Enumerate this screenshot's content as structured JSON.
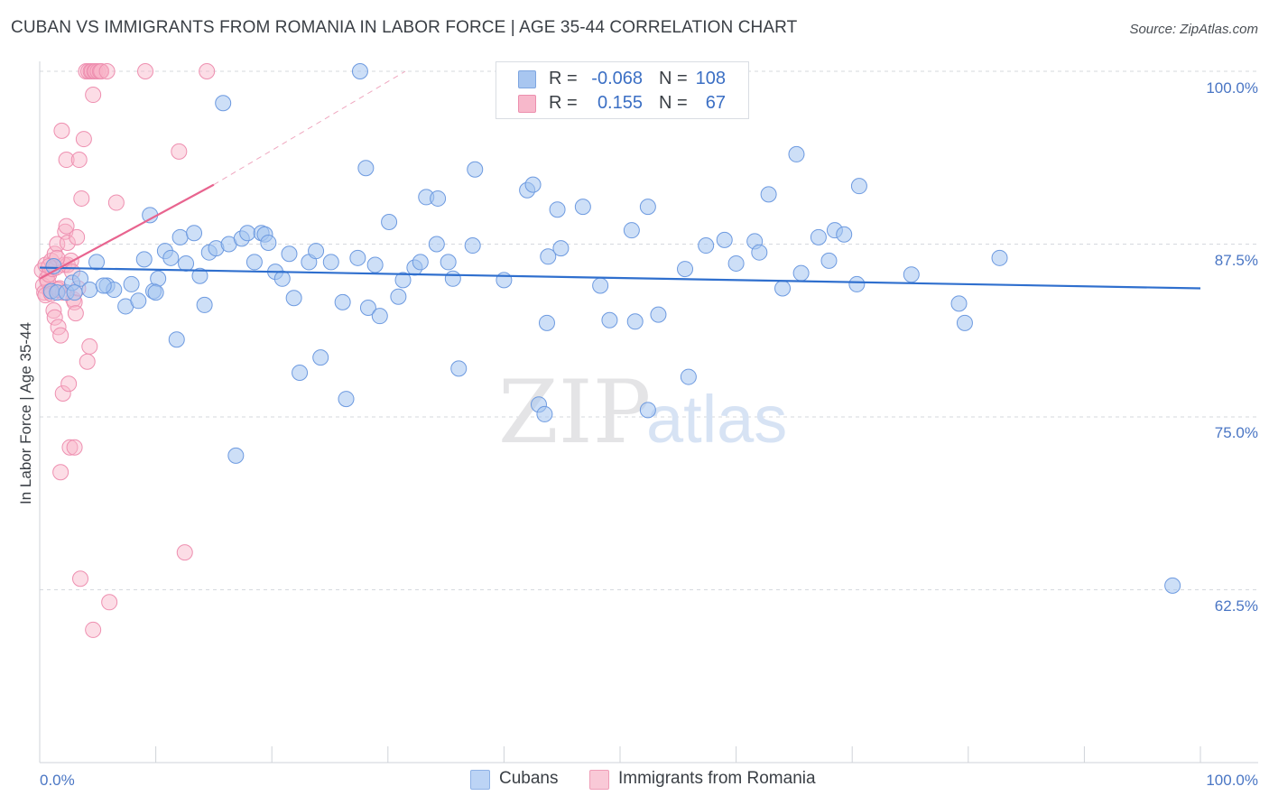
{
  "header": {
    "title": "CUBAN VS IMMIGRANTS FROM ROMANIA IN LABOR FORCE | AGE 35-44 CORRELATION CHART",
    "source": "Source: ZipAtlas.com"
  },
  "watermark": {
    "zip": "ZIP",
    "atlas": "atlas"
  },
  "legend_stats": [
    {
      "r_label": "R =",
      "r_value": "-0.068",
      "n_label": "N =",
      "n_value": "108",
      "color": "#a8c6f0",
      "border": "#7ea6e0"
    },
    {
      "r_label": "R =",
      "r_value": "0.155",
      "n_label": "N =",
      "n_value": "67",
      "color": "#f7b8cb",
      "border": "#ec8fae"
    }
  ],
  "bottom_legend": [
    {
      "label": "Cubans",
      "color": "#bcd4f5",
      "border": "#8eb2e6"
    },
    {
      "label": "Immigrants from Romania",
      "color": "#f9c9d7",
      "border": "#ef9db7"
    }
  ],
  "colors": {
    "cubans_fill": "rgba(164,196,240,0.55)",
    "cubans_stroke": "#6d9ae0",
    "cubans_line": "#2f6fce",
    "romania_fill": "rgba(248,180,200,0.45)",
    "romania_stroke": "#ee8fb0",
    "romania_line": "#e8648f",
    "grid": "#d5d9de",
    "axis_label": "#4a76c4"
  },
  "chart_data": {
    "type": "scatter",
    "title": "CUBAN VS IMMIGRANTS FROM ROMANIA IN LABOR FORCE | AGE 35-44 CORRELATION CHART",
    "xlabel": "",
    "ylabel": "In Labor Force | Age 35-44",
    "xlim": [
      0,
      100
    ],
    "ylim": [
      50,
      100
    ],
    "x_tick_labels": [
      "0.0%",
      "100.0%"
    ],
    "y_ticks": [
      100,
      87.5,
      75,
      62.5
    ],
    "y_tick_labels": [
      "100.0%",
      "87.5%",
      "75.0%",
      "62.5%"
    ],
    "grid": true,
    "series": [
      {
        "name": "Cubans",
        "r": -0.068,
        "n": 108,
        "trend": {
          "x": [
            0,
            100
          ],
          "y": [
            85.8,
            84.3
          ]
        },
        "points": [
          [
            1.0,
            84.1
          ],
          [
            1.5,
            84.0
          ],
          [
            2.3,
            84.0
          ],
          [
            2.8,
            84.7
          ],
          [
            3.5,
            85.0
          ],
          [
            4.3,
            84.2
          ],
          [
            4.9,
            86.2
          ],
          [
            5.8,
            84.5
          ],
          [
            6.4,
            84.2
          ],
          [
            7.4,
            83.0
          ],
          [
            7.9,
            84.6
          ],
          [
            8.5,
            83.4
          ],
          [
            9.0,
            86.4
          ],
          [
            9.5,
            89.6
          ],
          [
            9.8,
            84.1
          ],
          [
            10.2,
            85.0
          ],
          [
            10.8,
            87.0
          ],
          [
            11.3,
            86.5
          ],
          [
            11.8,
            80.6
          ],
          [
            12.1,
            88.0
          ],
          [
            12.6,
            86.1
          ],
          [
            13.3,
            88.3
          ],
          [
            13.8,
            85.2
          ],
          [
            14.2,
            83.1
          ],
          [
            14.6,
            86.9
          ],
          [
            15.2,
            87.2
          ],
          [
            15.8,
            97.7
          ],
          [
            16.3,
            87.5
          ],
          [
            16.9,
            72.2
          ],
          [
            17.4,
            87.9
          ],
          [
            17.9,
            88.3
          ],
          [
            18.5,
            86.2
          ],
          [
            19.1,
            88.3
          ],
          [
            19.4,
            88.2
          ],
          [
            19.7,
            87.6
          ],
          [
            20.3,
            85.5
          ],
          [
            20.9,
            85.0
          ],
          [
            21.5,
            86.8
          ],
          [
            21.9,
            83.6
          ],
          [
            22.4,
            78.2
          ],
          [
            23.2,
            86.2
          ],
          [
            23.8,
            87.0
          ],
          [
            24.2,
            79.3
          ],
          [
            25.1,
            86.2
          ],
          [
            26.1,
            83.3
          ],
          [
            26.4,
            76.3
          ],
          [
            27.4,
            86.5
          ],
          [
            27.6,
            100.0
          ],
          [
            28.1,
            93.0
          ],
          [
            28.3,
            82.9
          ],
          [
            28.9,
            86.0
          ],
          [
            29.3,
            82.3
          ],
          [
            30.1,
            89.1
          ],
          [
            30.9,
            83.7
          ],
          [
            31.3,
            84.9
          ],
          [
            32.3,
            85.8
          ],
          [
            32.8,
            86.2
          ],
          [
            33.3,
            90.9
          ],
          [
            34.2,
            87.5
          ],
          [
            34.3,
            90.8
          ],
          [
            35.2,
            86.2
          ],
          [
            35.6,
            85.0
          ],
          [
            36.1,
            78.5
          ],
          [
            37.3,
            87.4
          ],
          [
            37.5,
            92.9
          ],
          [
            40.0,
            84.9
          ],
          [
            42.0,
            91.4
          ],
          [
            42.5,
            91.8
          ],
          [
            43.0,
            75.9
          ],
          [
            43.5,
            75.2
          ],
          [
            43.7,
            81.8
          ],
          [
            43.8,
            86.6
          ],
          [
            44.6,
            90.0
          ],
          [
            44.9,
            87.2
          ],
          [
            46.8,
            90.2
          ],
          [
            48.3,
            84.5
          ],
          [
            49.1,
            82.0
          ],
          [
            51.0,
            88.5
          ],
          [
            51.3,
            81.9
          ],
          [
            52.4,
            90.2
          ],
          [
            52.4,
            75.5
          ],
          [
            53.3,
            82.4
          ],
          [
            55.6,
            85.7
          ],
          [
            55.9,
            77.9
          ],
          [
            57.4,
            87.4
          ],
          [
            59.0,
            87.8
          ],
          [
            60.0,
            86.1
          ],
          [
            61.6,
            87.7
          ],
          [
            62.0,
            86.9
          ],
          [
            62.8,
            91.1
          ],
          [
            64.0,
            84.3
          ],
          [
            65.2,
            94.0
          ],
          [
            65.6,
            85.4
          ],
          [
            67.1,
            88.0
          ],
          [
            68.0,
            86.3
          ],
          [
            68.5,
            88.5
          ],
          [
            69.3,
            88.2
          ],
          [
            70.4,
            84.6
          ],
          [
            70.6,
            91.7
          ],
          [
            75.1,
            85.3
          ],
          [
            79.2,
            83.2
          ],
          [
            79.7,
            81.8
          ],
          [
            82.7,
            86.5
          ],
          [
            97.6,
            62.8
          ],
          [
            10.0,
            84.0
          ],
          [
            3.0,
            84.0
          ],
          [
            5.5,
            84.5
          ],
          [
            1.2,
            85.9
          ]
        ]
      },
      {
        "name": "Immigrants from Romania",
        "r": 0.155,
        "n": 67,
        "trend": {
          "x": [
            0,
            15
          ],
          "y": [
            85.0,
            91.8
          ],
          "extrapolated_to": [
            31.5,
            100.0
          ]
        },
        "points": [
          [
            0.2,
            85.6
          ],
          [
            0.3,
            84.5
          ],
          [
            0.4,
            84.0
          ],
          [
            0.5,
            86.0
          ],
          [
            0.6,
            85.0
          ],
          [
            0.7,
            84.8
          ],
          [
            0.8,
            85.3
          ],
          [
            0.9,
            84.1
          ],
          [
            1.0,
            86.3
          ],
          [
            1.1,
            85.7
          ],
          [
            1.2,
            82.7
          ],
          [
            1.3,
            86.8
          ],
          [
            1.3,
            82.2
          ],
          [
            1.4,
            85.8
          ],
          [
            1.5,
            87.5
          ],
          [
            1.6,
            81.5
          ],
          [
            1.7,
            84.3
          ],
          [
            1.8,
            71.0
          ],
          [
            1.8,
            80.9
          ],
          [
            1.9,
            95.7
          ],
          [
            2.0,
            76.7
          ],
          [
            2.1,
            86.0
          ],
          [
            2.2,
            88.4
          ],
          [
            2.3,
            93.6
          ],
          [
            2.3,
            88.8
          ],
          [
            2.4,
            87.6
          ],
          [
            2.4,
            86.0
          ],
          [
            2.5,
            77.4
          ],
          [
            2.6,
            72.8
          ],
          [
            2.7,
            86.3
          ],
          [
            2.8,
            85.5
          ],
          [
            2.9,
            83.5
          ],
          [
            3.0,
            83.3
          ],
          [
            3.0,
            72.8
          ],
          [
            3.1,
            82.5
          ],
          [
            3.2,
            88.0
          ],
          [
            3.3,
            84.3
          ],
          [
            3.4,
            93.6
          ],
          [
            3.5,
            63.3
          ],
          [
            3.6,
            90.8
          ],
          [
            3.8,
            95.1
          ],
          [
            4.0,
            100.0
          ],
          [
            4.1,
            79.0
          ],
          [
            4.2,
            100.0
          ],
          [
            4.3,
            80.1
          ],
          [
            4.4,
            100.0
          ],
          [
            4.5,
            100.0
          ],
          [
            4.6,
            98.3
          ],
          [
            4.7,
            100.0
          ],
          [
            4.8,
            100.0
          ],
          [
            5.0,
            100.0
          ],
          [
            5.2,
            100.0
          ],
          [
            5.3,
            100.0
          ],
          [
            5.8,
            100.0
          ],
          [
            6.0,
            61.6
          ],
          [
            6.6,
            90.5
          ],
          [
            9.1,
            100.0
          ],
          [
            12.0,
            94.2
          ],
          [
            12.5,
            65.2
          ],
          [
            14.4,
            100.0
          ],
          [
            4.6,
            59.6
          ],
          [
            0.5,
            83.8
          ],
          [
            1.0,
            83.9
          ],
          [
            1.5,
            86.5
          ],
          [
            2.0,
            84.0
          ],
          [
            0.8,
            85.9
          ],
          [
            1.6,
            84.2
          ]
        ]
      }
    ]
  }
}
